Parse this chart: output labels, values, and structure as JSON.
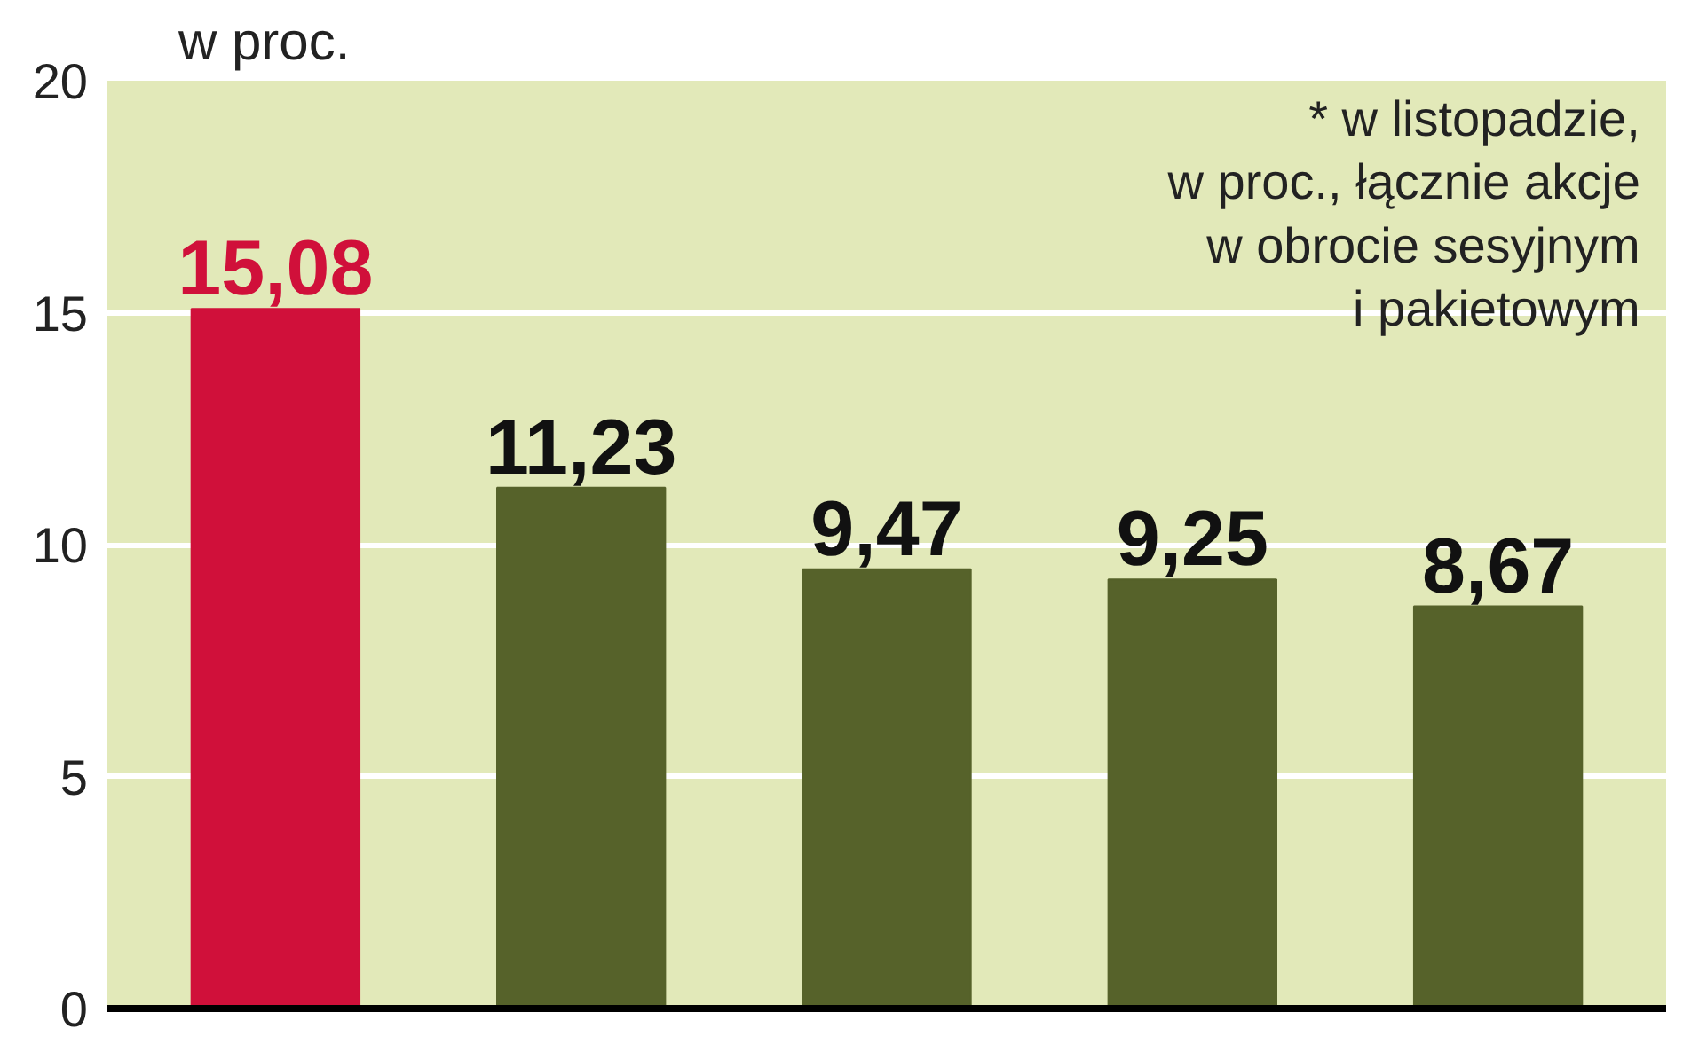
{
  "chart_data": {
    "type": "bar",
    "title": "w proc.",
    "annotations": [
      "* w listopadzie,\nw proc., łącznie akcje\nw obrocie sesyjnym\ni pakietowym"
    ],
    "categories": [
      null,
      null,
      null,
      null,
      null
    ],
    "values": [
      15.08,
      11.23,
      9.47,
      9.25,
      8.67
    ],
    "colors": [
      "#d0103a",
      "#56622a",
      "#56622a",
      "#56622a",
      "#56622a"
    ],
    "value_labels": [
      "15,08",
      "11,23",
      "9,47",
      "9,25",
      "8,67"
    ],
    "ylim": [
      0,
      20
    ],
    "yticks": [
      0,
      5,
      10,
      15,
      20
    ],
    "grid": "y"
  }
}
